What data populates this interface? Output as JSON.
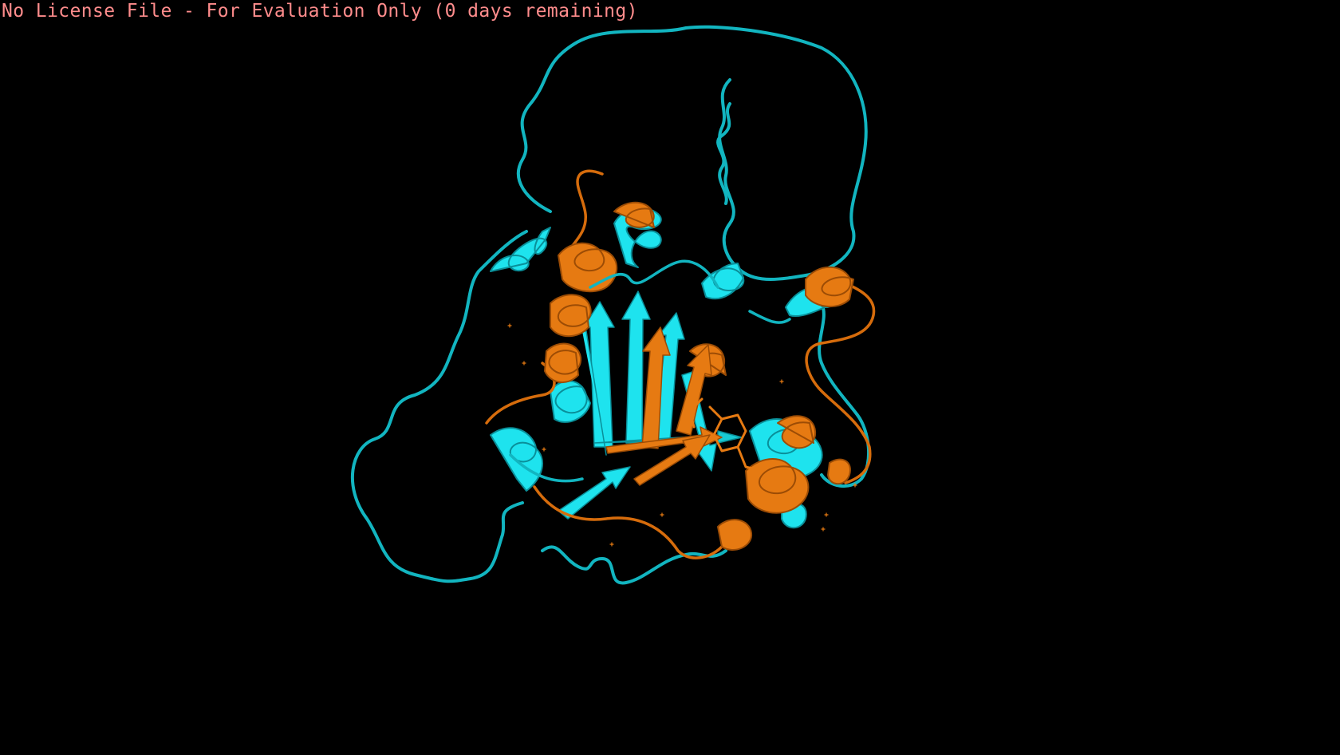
{
  "viewer": {
    "license_banner": "No License File - For Evaluation Only (0 days remaining)",
    "background_color": "#000000",
    "banner_color": "#ff8c8c"
  },
  "structures": [
    {
      "representation": "cartoon",
      "color": "#12dde6",
      "color_name": "cyan"
    },
    {
      "representation": "cartoon",
      "color": "#e67a12",
      "color_name": "orange"
    }
  ]
}
